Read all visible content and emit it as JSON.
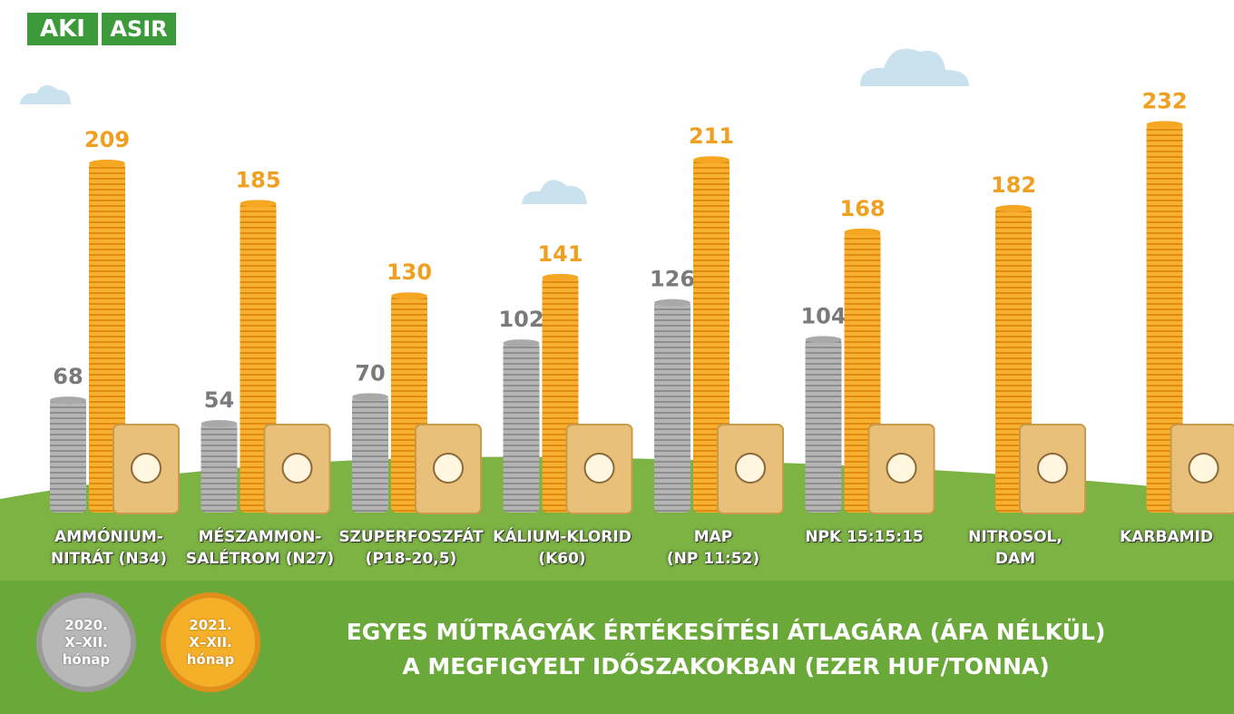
{
  "logo": [
    "AKI",
    "ASIR"
  ],
  "chart_data": {
    "type": "bar",
    "title": "EGYES MŰTRÁGYÁK ÉRTÉKESÍTÉSI ÁTLAGÁRA (ÁFA NÉLKÜL)\nA MEGFIGYELT IDŐSZAKOKBAN (EZER HUF/TONNA)",
    "categories": [
      "AMMÓNIUM-\nNITRÁT (N34)",
      "MÉSZAMMON-\nSALÉTROM (N27)",
      "SZUPERFOSZFÁT\n(P18-20,5)",
      "KÁLIUM-KLORID\n(K60)",
      "MAP\n(NP 11:52)",
      "NPK 15:15:15",
      "NITROSOL,\nDAM",
      "KARBAMID"
    ],
    "series": [
      {
        "name": "2020.\nX–XII.\nhónap",
        "color": "#a9a9a9",
        "label_color": "#7a7a7a",
        "values": [
          68,
          54,
          70,
          102,
          126,
          104,
          null,
          null
        ]
      },
      {
        "name": "2021.\nX–XII.\nhónap",
        "color": "#f5a623",
        "label_color": "#f0a020",
        "values": [
          209,
          185,
          130,
          141,
          211,
          168,
          182,
          232
        ]
      }
    ],
    "ylim": [
      0,
      250
    ]
  }
}
